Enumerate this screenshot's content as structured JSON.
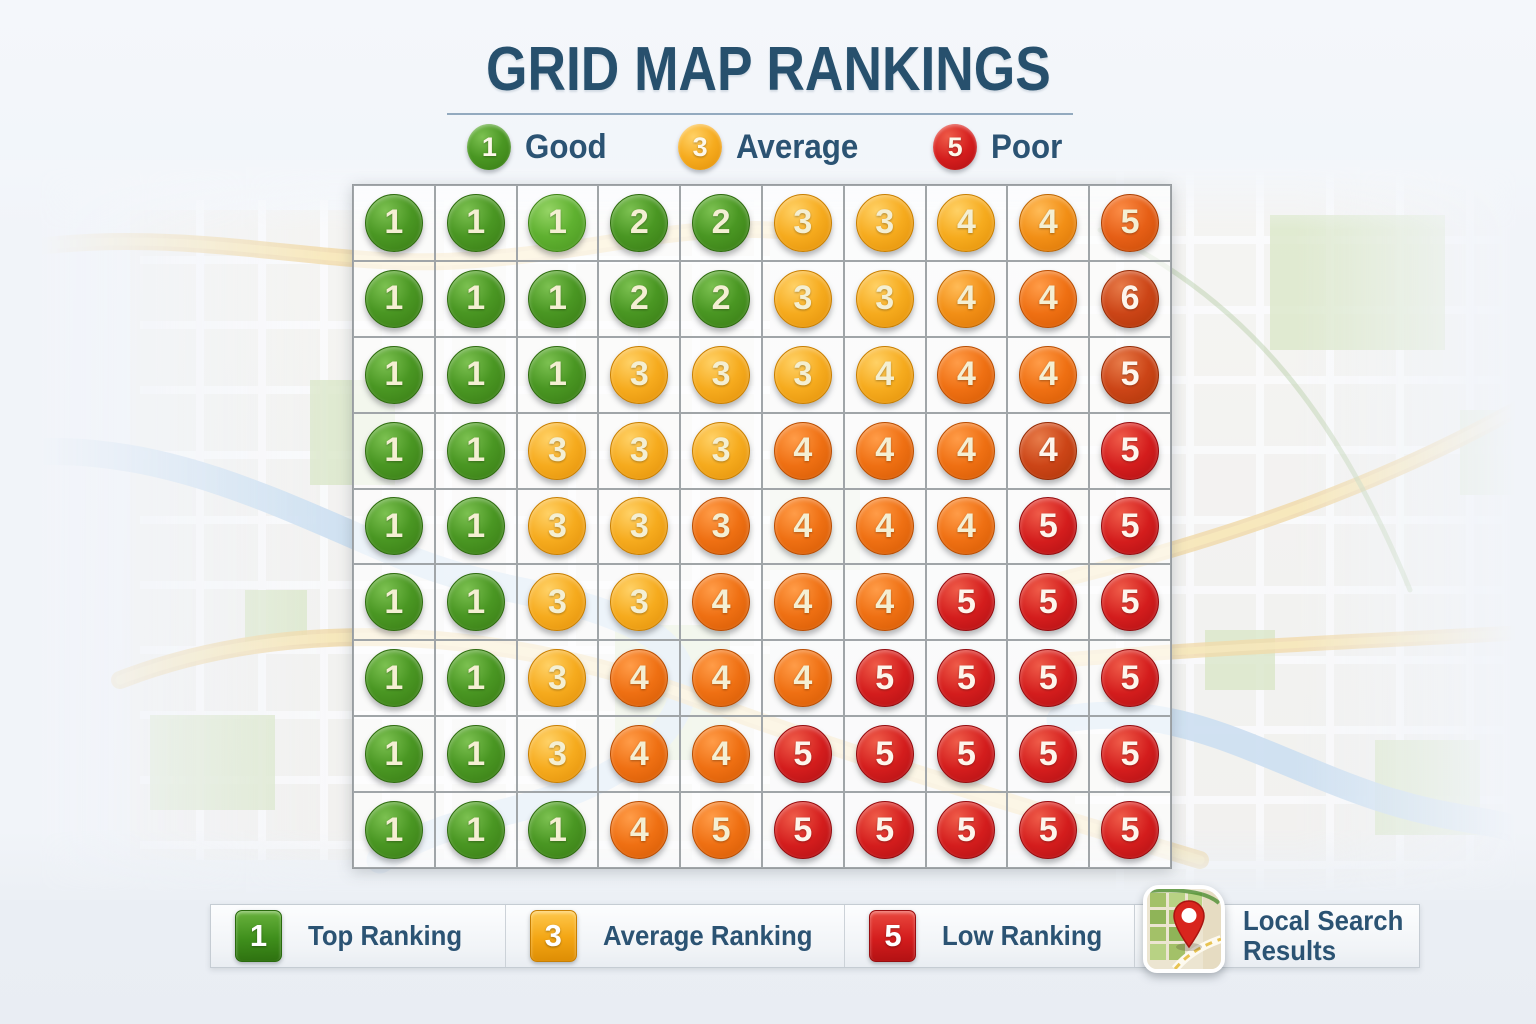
{
  "title": "GRID MAP RANKINGS",
  "top_legend": {
    "items": [
      {
        "value": "1",
        "label": "Good",
        "color": "green"
      },
      {
        "value": "3",
        "label": "Average",
        "color": "amber"
      },
      {
        "value": "5",
        "label": "Poor",
        "color": "red"
      }
    ]
  },
  "chart_data": {
    "type": "heatmap",
    "title": "GRID MAP RANKINGS",
    "rows": 9,
    "cols": 10,
    "values": [
      [
        1,
        1,
        1,
        2,
        2,
        3,
        3,
        4,
        4,
        5
      ],
      [
        1,
        1,
        1,
        2,
        2,
        3,
        3,
        4,
        4,
        6
      ],
      [
        1,
        1,
        1,
        3,
        3,
        3,
        4,
        4,
        4,
        5
      ],
      [
        1,
        1,
        3,
        3,
        3,
        4,
        4,
        4,
        4,
        5
      ],
      [
        1,
        1,
        3,
        3,
        3,
        4,
        4,
        4,
        5,
        5
      ],
      [
        1,
        1,
        3,
        3,
        4,
        4,
        4,
        5,
        5,
        5
      ],
      [
        1,
        1,
        3,
        4,
        4,
        4,
        5,
        5,
        5,
        5
      ],
      [
        1,
        1,
        3,
        4,
        4,
        5,
        5,
        5,
        5,
        5
      ],
      [
        1,
        1,
        1,
        4,
        5,
        5,
        5,
        5,
        5,
        5
      ]
    ],
    "cell_colors": [
      [
        "green",
        "green",
        "greenLight",
        "green",
        "green",
        "amber",
        "amber",
        "amber",
        "tangerine",
        "orangeDeep"
      ],
      [
        "green",
        "green",
        "green",
        "green",
        "green",
        "amber",
        "amber",
        "tangerine",
        "orange",
        "rust"
      ],
      [
        "green",
        "green",
        "green",
        "amber",
        "amber",
        "amber",
        "amber",
        "orange",
        "orange",
        "rust"
      ],
      [
        "green",
        "green",
        "amber",
        "amber",
        "amber",
        "orange",
        "orange",
        "orange",
        "rust",
        "red"
      ],
      [
        "green",
        "green",
        "amber",
        "amber",
        "orange",
        "orange",
        "orange",
        "orange",
        "red",
        "red"
      ],
      [
        "green",
        "green",
        "amber",
        "amber",
        "orange",
        "orange",
        "orange",
        "red",
        "red",
        "red"
      ],
      [
        "green",
        "green",
        "amber",
        "orange",
        "orange",
        "orange",
        "red",
        "red",
        "red",
        "red"
      ],
      [
        "green",
        "green",
        "amber",
        "orange",
        "orange",
        "red",
        "red",
        "red",
        "red",
        "red"
      ],
      [
        "green",
        "green",
        "green",
        "orange",
        "orange",
        "red",
        "red",
        "red",
        "red",
        "red"
      ]
    ],
    "color_palette": {
      "green": "#44921e",
      "greenLight": "#5baf2f",
      "amber": "#f5a91c",
      "tangerine": "#f18c15",
      "orange": "#ee6f12",
      "orangeDeep": "#e55e16",
      "rust": "#cc4517",
      "red": "#d41d1d"
    },
    "legend": [
      {
        "value": 1,
        "label": "Good"
      },
      {
        "value": 3,
        "label": "Average"
      },
      {
        "value": 5,
        "label": "Poor"
      }
    ]
  },
  "bottom_legend": {
    "items": [
      {
        "value": "1",
        "label": "Top Ranking",
        "color": "green"
      },
      {
        "value": "3",
        "label": "Average Ranking",
        "color": "amber"
      },
      {
        "value": "5",
        "label": "Low Ranking",
        "color": "red"
      }
    ],
    "map_card": {
      "icon": "map-pin-icon",
      "label_line1": "Local Search",
      "label_line2": "Results"
    }
  }
}
